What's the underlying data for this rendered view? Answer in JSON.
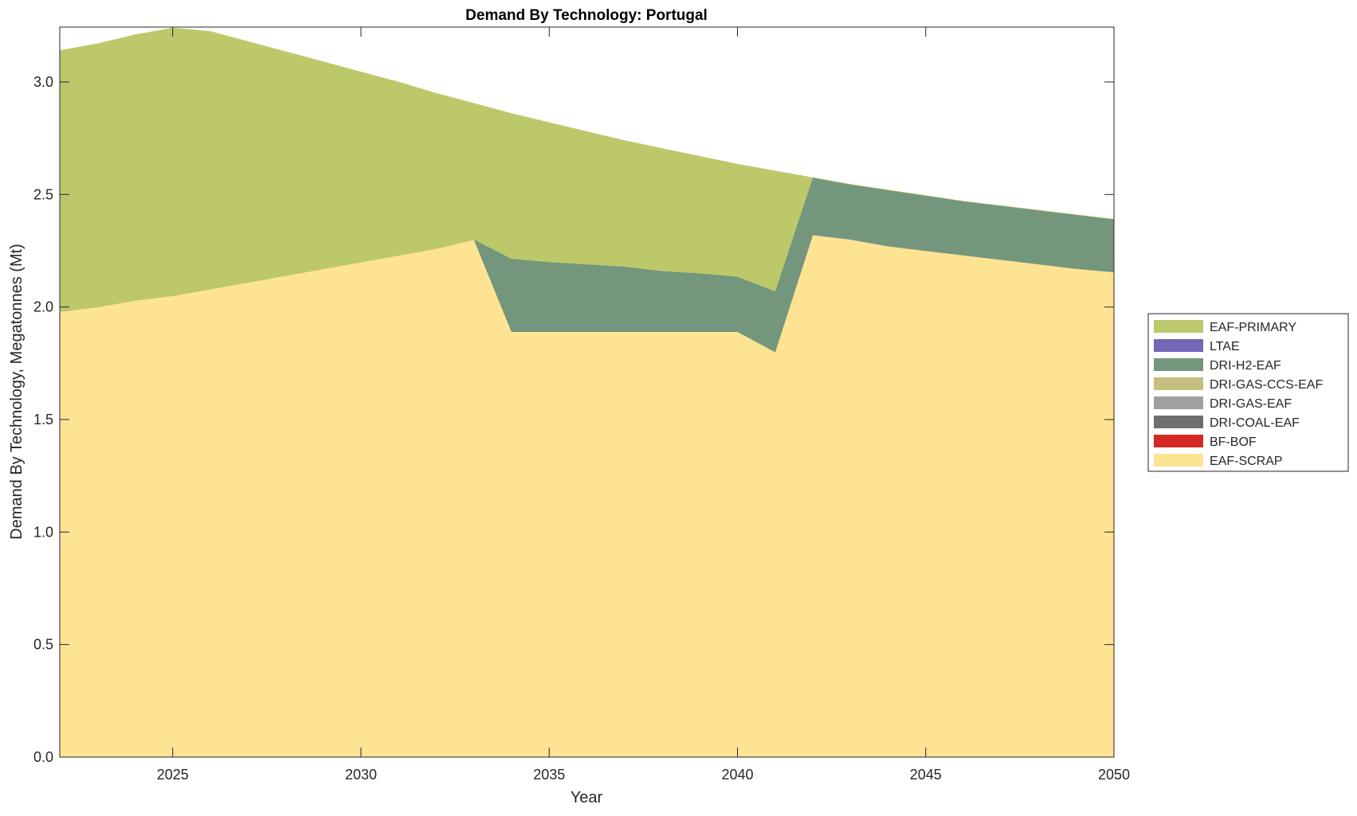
{
  "chart_data": {
    "type": "area",
    "stacked": true,
    "title": "Demand By Technology: Portugal",
    "xlabel": "Year",
    "ylabel": "Demand By Technology, Megatonnes (Mt)",
    "xlim": [
      2022,
      2050
    ],
    "ylim": [
      0,
      3.244
    ],
    "xticks": [
      "2025",
      "2030",
      "2035",
      "2040",
      "2045",
      "2050"
    ],
    "yticks": [
      "0.0",
      "0.5",
      "1.0",
      "1.5",
      "2.0",
      "2.5",
      "3.0"
    ],
    "grid": false,
    "legend_position": "right",
    "x": [
      2022,
      2023,
      2024,
      2025,
      2026,
      2027,
      2028,
      2029,
      2030,
      2031,
      2032,
      2033,
      2034,
      2035,
      2036,
      2037,
      2038,
      2039,
      2040,
      2041,
      2042,
      2043,
      2044,
      2045,
      2046,
      2047,
      2048,
      2049,
      2050
    ],
    "series": [
      {
        "name": "EAF-SCRAP",
        "color": "#fee393",
        "values": [
          1.98,
          2.0,
          2.03,
          2.05,
          2.08,
          2.11,
          2.14,
          2.17,
          2.2,
          2.23,
          2.26,
          2.3,
          1.89,
          1.89,
          1.89,
          1.89,
          1.89,
          1.89,
          1.89,
          1.8,
          2.32,
          2.3,
          2.27,
          2.25,
          2.23,
          2.21,
          2.19,
          2.17,
          2.155
        ]
      },
      {
        "name": "BF-BOF",
        "color": "#d42a26",
        "values": [
          0,
          0,
          0,
          0,
          0,
          0,
          0,
          0,
          0,
          0,
          0,
          0,
          0,
          0,
          0,
          0,
          0,
          0,
          0,
          0,
          0,
          0,
          0,
          0,
          0,
          0,
          0,
          0,
          0
        ]
      },
      {
        "name": "DRI-COAL-EAF",
        "color": "#6e6e6e",
        "values": [
          0,
          0,
          0,
          0,
          0,
          0,
          0,
          0,
          0,
          0,
          0,
          0,
          0,
          0,
          0,
          0,
          0,
          0,
          0,
          0,
          0,
          0,
          0,
          0,
          0,
          0,
          0,
          0,
          0
        ]
      },
      {
        "name": "DRI-GAS-EAF",
        "color": "#a0a0a0",
        "values": [
          0,
          0,
          0,
          0,
          0,
          0,
          0,
          0,
          0,
          0,
          0,
          0,
          0,
          0,
          0,
          0,
          0,
          0,
          0,
          0,
          0,
          0,
          0,
          0,
          0,
          0,
          0,
          0,
          0
        ]
      },
      {
        "name": "DRI-GAS-CCS-EAF",
        "color": "#c6bd80",
        "values": [
          0,
          0,
          0,
          0,
          0,
          0,
          0,
          0,
          0,
          0,
          0,
          0,
          0,
          0,
          0,
          0,
          0,
          0,
          0,
          0,
          0,
          0,
          0,
          0,
          0,
          0,
          0,
          0,
          0
        ]
      },
      {
        "name": "DRI-H2-EAF",
        "color": "#73967d",
        "values": [
          0,
          0,
          0,
          0,
          0,
          0,
          0,
          0,
          0,
          0,
          0,
          0,
          0.325,
          0.31,
          0.3,
          0.29,
          0.27,
          0.26,
          0.245,
          0.27,
          0.255,
          0.245,
          0.25,
          0.245,
          0.24,
          0.24,
          0.24,
          0.24,
          0.235
        ]
      },
      {
        "name": "LTAE",
        "color": "#7467b8",
        "values": [
          0,
          0,
          0,
          0,
          0,
          0,
          0,
          0,
          0,
          0,
          0,
          0,
          0,
          0,
          0,
          0,
          0,
          0,
          0,
          0,
          0,
          0,
          0,
          0,
          0,
          0,
          0,
          0,
          0
        ]
      },
      {
        "name": "EAF-PRIMARY",
        "color": "#bdc86b",
        "values": [
          1.16,
          1.17,
          1.18,
          1.19,
          1.145,
          1.07,
          0.995,
          0.92,
          0.845,
          0.77,
          0.69,
          0.605,
          0.645,
          0.62,
          0.59,
          0.56,
          0.545,
          0.52,
          0.5,
          0.535,
          0,
          0,
          0,
          0,
          0,
          0,
          0,
          0,
          0
        ]
      }
    ],
    "legend_order": [
      "EAF-PRIMARY",
      "LTAE",
      "DRI-H2-EAF",
      "DRI-GAS-CCS-EAF",
      "DRI-GAS-EAF",
      "DRI-COAL-EAF",
      "BF-BOF",
      "EAF-SCRAP"
    ]
  }
}
